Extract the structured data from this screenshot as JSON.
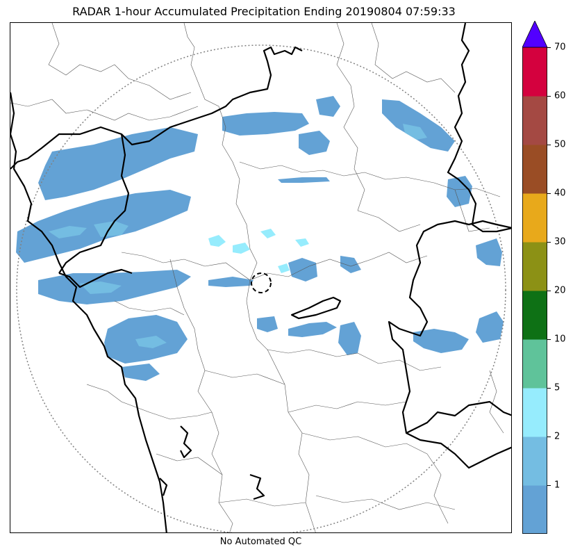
{
  "title": "RADAR 1-hour Accumulated Precipitation Ending 20190804 07:59:33",
  "footnote": "No Automated QC",
  "colorbar": {
    "colors": [
      "#63a2d5",
      "#74bde2",
      "#96ecfd",
      "#5fc39a",
      "#0e7115",
      "#8c9115",
      "#e8a91b",
      "#9a4d25",
      "#a44943",
      "#d4013e"
    ],
    "extend_color": "#5200ff",
    "ticks": [
      "1",
      "2",
      "5",
      "10",
      "20",
      "30",
      "40",
      "50",
      "60",
      "70"
    ]
  },
  "map": {
    "range_ring_color": "#808080",
    "border_color": "#000000",
    "district_color": "#555555",
    "precip_color": "#63a2d5",
    "precip_light_color": "#74bde2",
    "precip_cyan_color": "#96ecfd"
  }
}
